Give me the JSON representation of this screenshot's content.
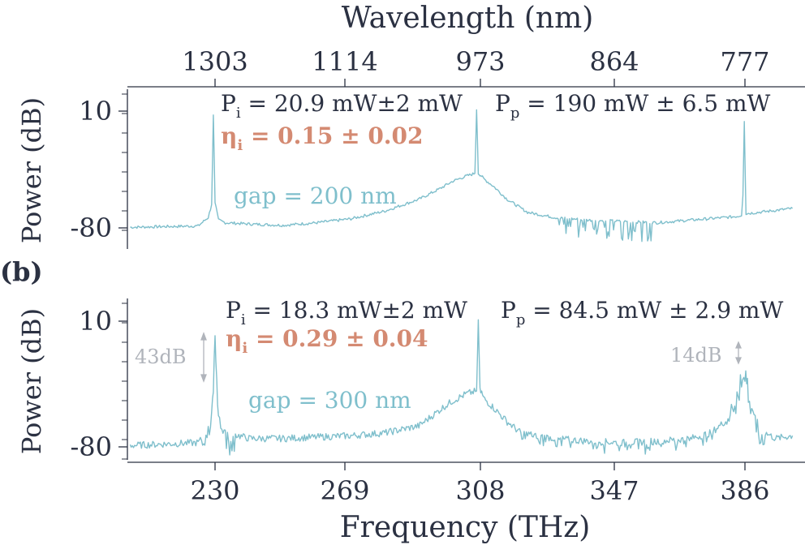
{
  "figure": {
    "top_axis_label": "Wavelength (nm)",
    "bottom_axis_label": "Frequency (THz)",
    "panel_b_label": "(b)",
    "top_axis_ticks": [
      "1303",
      "1114",
      "973",
      "864",
      "777"
    ]
  },
  "colors": {
    "trace": "#7fbfcc",
    "efficiency": "#d48a72",
    "annotation_grey": "#b0b4bb",
    "axis": "#2b3142"
  },
  "chart_data": [
    {
      "type": "line",
      "panel": "top",
      "ylabel": "Power (dB)",
      "y_ticks": [
        "10",
        "-80"
      ],
      "ylim": [
        -88,
        16
      ],
      "xlim": [
        205,
        400
      ],
      "annotations": {
        "pi_prefix": "P",
        "pi_sub": "i",
        "pi_value": " = 20.9 mW±2 mW",
        "pp_prefix": "P",
        "pp_sub": "p",
        "pp_value": " = 190 mW ± 6.5 mW",
        "eta_prefix": "η",
        "eta_sub": "i",
        "eta_value": " = 0.15 ± 0.02",
        "gap": "gap = 200 nm"
      },
      "series": [
        {
          "x": [
            205,
            215,
            225,
            228,
            229,
            229.5,
            230,
            231,
            233,
            240,
            250,
            260,
            270,
            280,
            290,
            296,
            300,
            304,
            306.5,
            307,
            307.5,
            308,
            308.5,
            309,
            312,
            316,
            322,
            330,
            340,
            350,
            360,
            370,
            380,
            384,
            385,
            385.4,
            385.8,
            386.3,
            390,
            400
          ],
          "y": [
            -79.5,
            -79,
            -78.5,
            -72,
            -62,
            7,
            -60,
            -74,
            -76,
            -77,
            -78,
            -76,
            -73,
            -67,
            -58,
            -50,
            -44,
            -40,
            -38,
            11,
            -38,
            -39,
            -40,
            -42,
            -48,
            -58,
            -68,
            -72,
            -74,
            -75,
            -76,
            -74,
            -72,
            -71,
            -70,
            -55,
            2,
            -69,
            -68,
            -65
          ]
        }
      ],
      "noise_dips": [
        [
          330,
          360
        ]
      ]
    },
    {
      "type": "line",
      "panel": "bottom",
      "ylabel": "Power (dB)",
      "y_ticks": [
        "10",
        "-80"
      ],
      "ylim": [
        -88,
        16
      ],
      "xlim": [
        205,
        400
      ],
      "x_ticks": [
        "230",
        "269",
        "308",
        "347",
        "386"
      ],
      "annotations": {
        "pi_prefix": "P",
        "pi_sub": "i",
        "pi_value": " = 18.3 mW±2 mW",
        "pp_prefix": "P",
        "pp_sub": "p",
        "pp_value": " = 84.5 mW ± 2.9 mW",
        "eta_prefix": "η",
        "eta_sub": "i",
        "eta_value": " = 0.29 ± 0.04",
        "gap": "gap = 300 nm",
        "left_ratio": "43dB",
        "right_ratio": "14dB"
      },
      "series": [
        {
          "x": [
            205,
            215,
            225,
            227,
            228,
            229,
            229.5,
            230,
            230.5,
            231,
            232,
            234,
            240,
            250,
            260,
            270,
            280,
            290,
            297,
            300,
            304,
            307,
            307.5,
            308,
            308.5,
            309,
            312,
            316,
            320,
            330,
            340,
            350,
            360,
            370,
            376,
            380,
            383,
            385,
            386,
            386.5,
            387,
            388,
            390,
            392,
            395,
            400
          ],
          "y": [
            -79,
            -78,
            -77,
            -72,
            -60,
            -48,
            -30,
            8,
            -32,
            -50,
            -62,
            -70,
            -74,
            -74,
            -73,
            -72,
            -70,
            -65,
            -52,
            -47,
            -42,
            -40,
            11,
            -40,
            -41,
            -45,
            -52,
            -62,
            -70,
            -74,
            -76,
            -77,
            -76,
            -74,
            -70,
            -62,
            -45,
            -25,
            -18,
            -22,
            -35,
            -50,
            -62,
            -70,
            -74,
            -72
          ]
        }
      ]
    }
  ]
}
